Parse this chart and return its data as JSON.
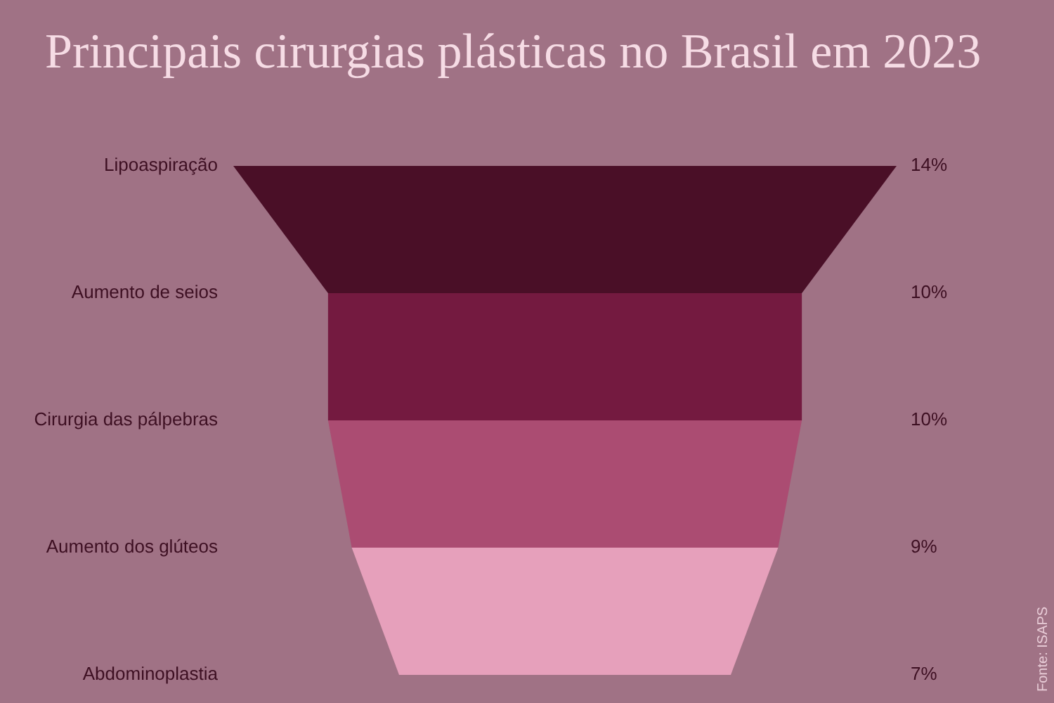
{
  "chart_data": {
    "type": "other",
    "title": "Principais cirurgias plásticas no Brasil em 2023",
    "categories": [
      "Lipoaspiração",
      "Aumento de seios",
      "Cirurgia das pálpebras",
      "Aumento dos glúteos",
      "Abdominoplastia"
    ],
    "values": [
      14,
      10,
      10,
      9,
      7
    ],
    "value_labels": [
      "14%",
      "10%",
      "10%",
      "9%",
      "7%"
    ],
    "colors": [
      "#4a0f27",
      "#741a40",
      "#ab4c72",
      "#e6a0bb",
      "#e6a0bb"
    ],
    "annotations": [
      "Fonte: ISAPS"
    ]
  }
}
